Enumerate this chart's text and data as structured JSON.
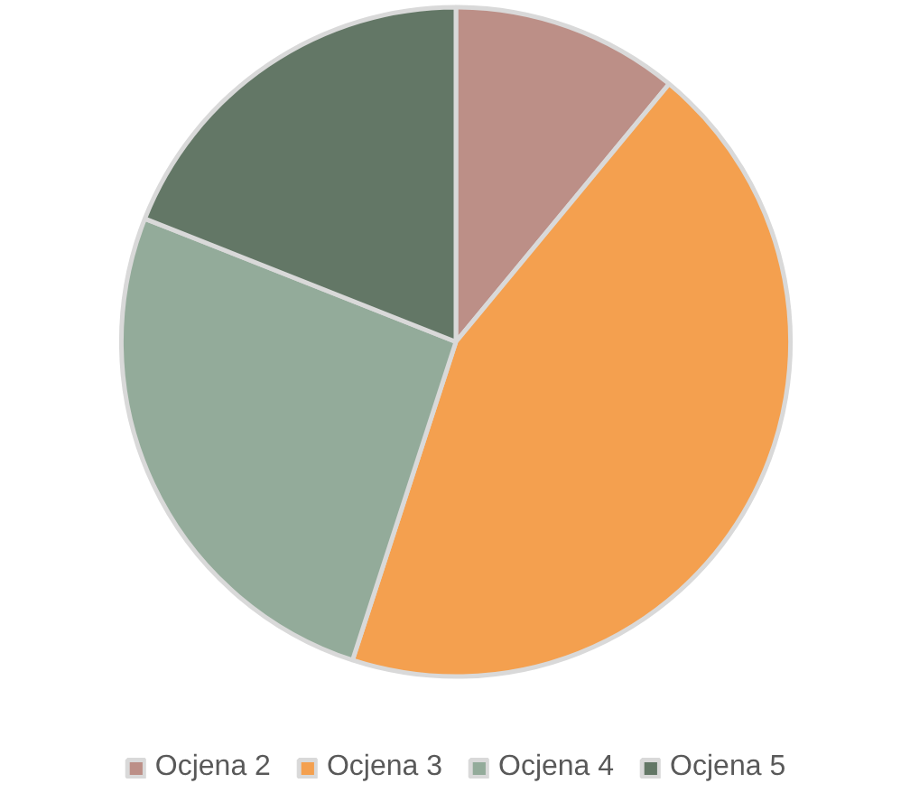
{
  "chart_data": {
    "type": "pie",
    "categories": [
      "Ocjena 2",
      "Ocjena 3",
      "Ocjena 4",
      "Ocjena 5"
    ],
    "values": [
      11,
      44,
      26,
      19
    ],
    "colors": [
      "#bc8f87",
      "#f4a04f",
      "#93ab9a",
      "#637766"
    ],
    "legend": "bottom"
  }
}
